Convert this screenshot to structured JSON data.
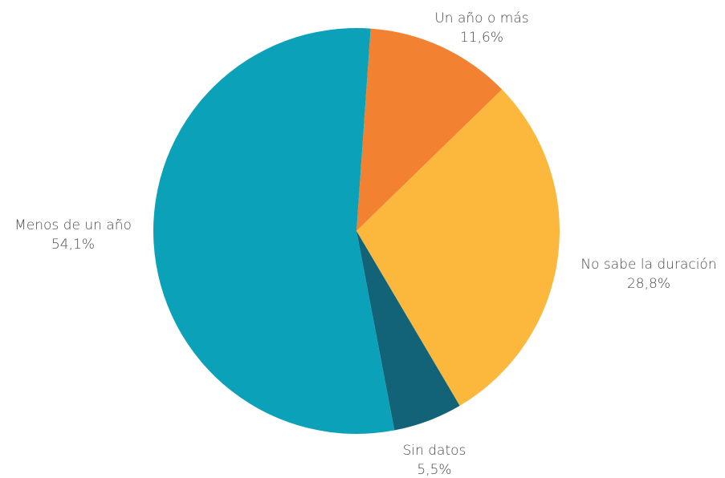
{
  "chart_data": {
    "type": "pie",
    "title": "",
    "slices": [
      {
        "label": "Un año o más",
        "value": 11.6,
        "value_label": "11,6%",
        "color": "#F28131"
      },
      {
        "label": "No sabe la duración",
        "value": 28.8,
        "value_label": "28,8%",
        "color": "#FBB83C"
      },
      {
        "label": "Sin datos",
        "value": 5.5,
        "value_label": "5,5%",
        "color": "#136378"
      },
      {
        "label": "Menos de un año",
        "value": 54.1,
        "value_label": "54,1%",
        "color": "#0AA1B9"
      }
    ],
    "legend": "none",
    "labels_position": "outside"
  }
}
